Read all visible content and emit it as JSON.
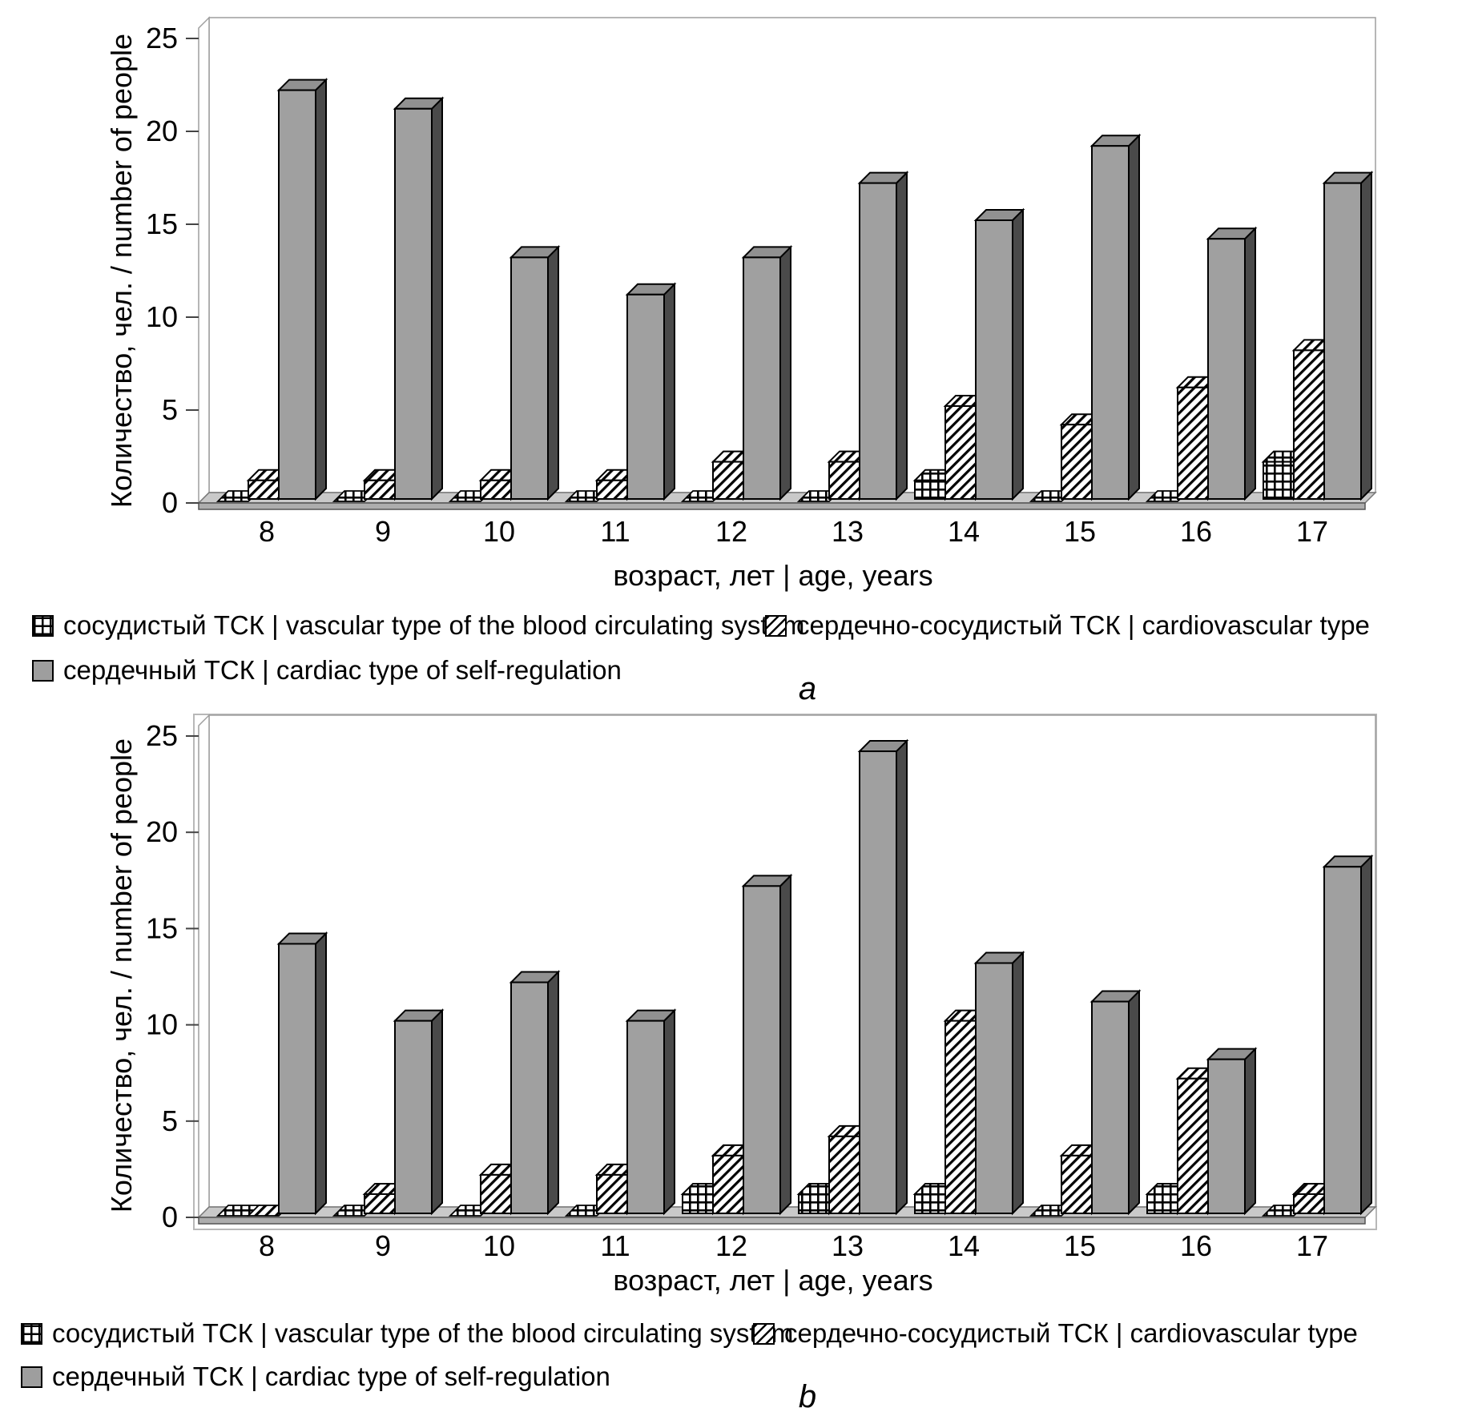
{
  "colors": {
    "bar_front": "#a0a0a0",
    "bar_top": "#919191",
    "bar_side": "#4a4a4a",
    "floor": "#c9c9c9",
    "floor_edge": "#adadad",
    "wall_stroke": "#9e9e9e",
    "outline": "#000000"
  },
  "chart_data": [
    {
      "id": "a",
      "type": "bar",
      "panel_label": "a",
      "y_axis_title": "Количество, чел. / number of people",
      "x_axis_title": "возраст, лет | age, years",
      "ylim": [
        0,
        25
      ],
      "y_ticks": [
        0,
        5,
        10,
        15,
        20,
        25
      ],
      "grid": "off",
      "legend_position": "bottom",
      "categories": [
        "8",
        "9",
        "10",
        "11",
        "12",
        "13",
        "14",
        "15",
        "16",
        "17"
      ],
      "legend": [
        {
          "label": "сосудистый ТСК | vascular type of the blood circulating system",
          "pattern": "grid"
        },
        {
          "label": "сердечно-сосудистый ТСК | cardiovascular type",
          "pattern": "hatch"
        },
        {
          "label": "сердечный ТСК | cardiac type of self-regulation",
          "pattern": "solid"
        }
      ],
      "series": [
        {
          "name": "сосудистый ТСК | vascular type of the blood circulating system",
          "pattern": "grid",
          "values": [
            0,
            0,
            0,
            0,
            0,
            0,
            1,
            0,
            0,
            2
          ]
        },
        {
          "name": "сердечно-сосудистый ТСК | cardiovascular type",
          "pattern": "hatch",
          "values": [
            1,
            1,
            1,
            1,
            2,
            2,
            5,
            4,
            6,
            8
          ]
        },
        {
          "name": "сердечный ТСК | cardiac type of self-regulation",
          "pattern": "solid",
          "values": [
            22,
            21,
            13,
            11,
            13,
            17,
            15,
            19,
            14,
            17
          ]
        }
      ]
    },
    {
      "id": "b",
      "type": "bar",
      "panel_label": "b",
      "y_axis_title": "Количество, чел. / number of people",
      "x_axis_title": "возраст, лет | age, years",
      "ylim": [
        0,
        25
      ],
      "y_ticks": [
        0,
        5,
        10,
        15,
        20,
        25
      ],
      "grid": "off",
      "legend_position": "bottom",
      "categories": [
        "8",
        "9",
        "10",
        "11",
        "12",
        "13",
        "14",
        "15",
        "16",
        "17"
      ],
      "legend": [
        {
          "label": "сосудистый ТСК | vascular type of the blood circulating system",
          "pattern": "grid"
        },
        {
          "label": "сердечно-сосудистый ТСК | cardiovascular type",
          "pattern": "hatch"
        },
        {
          "label": "сердечный ТСК | cardiac type of self-regulation",
          "pattern": "solid"
        }
      ],
      "series": [
        {
          "name": "сосудистый ТСК | vascular type of the blood circulating system",
          "pattern": "grid",
          "values": [
            0,
            0,
            0,
            0,
            1,
            1,
            1,
            0,
            1,
            0
          ]
        },
        {
          "name": "сердечно-сосудистый ТСК | cardiovascular type",
          "pattern": "hatch",
          "values": [
            0,
            1,
            2,
            2,
            3,
            4,
            10,
            3,
            7,
            1
          ]
        },
        {
          "name": "сердечный ТСК | cardiac type of self-regulation",
          "pattern": "solid",
          "values": [
            14,
            10,
            12,
            10,
            17,
            24,
            13,
            11,
            8,
            18
          ]
        }
      ]
    }
  ]
}
